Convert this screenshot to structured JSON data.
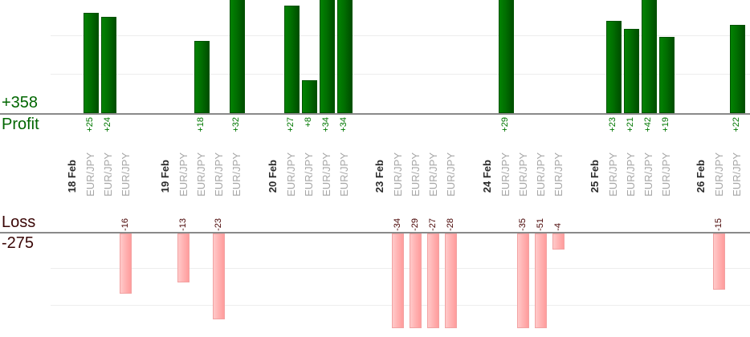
{
  "chart_data": {
    "type": "bar",
    "orientation": "vertical",
    "description": "Daily trade results split into an upper Profit panel (green bars up) and a lower Loss panel (pink bars down); every bar is labelled with its value and the traded symbol",
    "panels": {
      "profit": {
        "label": "Profit",
        "total": "+358",
        "total_value": 358,
        "grid_step_units": 10,
        "bar_color_left": "#028202",
        "bar_color_right": "#004e00",
        "text_color": "#006600"
      },
      "loss": {
        "label": "Loss",
        "total": "-275",
        "total_value": -275,
        "grid_step_units": 10,
        "bar_color_left": "#ffcaca",
        "bar_color_right": "#ff9c9c",
        "text_color": "#3a0606"
      }
    },
    "groups": [
      {
        "date": "18 Feb",
        "trades": [
          {
            "symbol": "EUR/JPY",
            "value": 25
          },
          {
            "symbol": "EUR/JPY",
            "value": 24
          },
          {
            "symbol": "EUR/JPY",
            "value": -16
          }
        ]
      },
      {
        "date": "19 Feb",
        "trades": [
          {
            "symbol": "EUR/JPY",
            "value": -13
          },
          {
            "symbol": "EUR/JPY",
            "value": 18
          },
          {
            "symbol": "EUR/JPY",
            "value": -23
          },
          {
            "symbol": "EUR/JPY",
            "value": 32
          }
        ]
      },
      {
        "date": "20 Feb",
        "trades": [
          {
            "symbol": "EUR/JPY",
            "value": 27
          },
          {
            "symbol": "EUR/JPY",
            "value": 8
          },
          {
            "symbol": "EUR/JPY",
            "value": 34
          },
          {
            "symbol": "EUR/JPY",
            "value": 34
          }
        ]
      },
      {
        "date": "23 Feb",
        "trades": [
          {
            "symbol": "EUR/JPY",
            "value": -34
          },
          {
            "symbol": "EUR/JPY",
            "value": -29
          },
          {
            "symbol": "EUR/JPY",
            "value": -27
          },
          {
            "symbol": "EUR/JPY",
            "value": -28
          }
        ]
      },
      {
        "date": "24 Feb",
        "trades": [
          {
            "symbol": "EUR/JPY",
            "value": 29
          },
          {
            "symbol": "EUR/JPY",
            "value": -35
          },
          {
            "symbol": "EUR/JPY",
            "value": -51
          },
          {
            "symbol": "EUR/JPY",
            "value": -4
          }
        ]
      },
      {
        "date": "25 Feb",
        "trades": [
          {
            "symbol": "EUR/JPY",
            "value": 23
          },
          {
            "symbol": "EUR/JPY",
            "value": 21
          },
          {
            "symbol": "EUR/JPY",
            "value": 42
          },
          {
            "symbol": "EUR/JPY",
            "value": 19
          }
        ]
      },
      {
        "date": "26 Feb",
        "trades": [
          {
            "symbol": "EUR/JPY",
            "value": -15
          },
          {
            "symbol": "EUR/JPY",
            "value": 22
          }
        ]
      }
    ]
  }
}
